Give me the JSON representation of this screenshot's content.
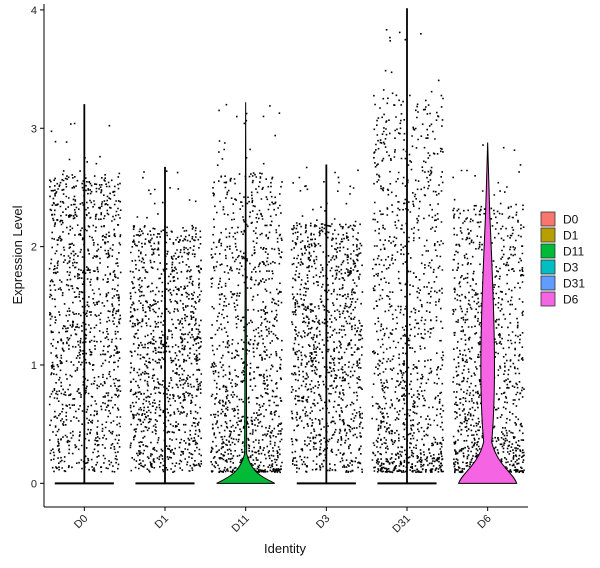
{
  "chart_data": {
    "type": "violin",
    "xlabel": "Identity",
    "ylabel": "Expression Level",
    "ylim": [
      -0.2,
      4.05
    ],
    "yticks": [
      0,
      1,
      2,
      3,
      4
    ],
    "grid": false,
    "legend_position": "right",
    "categories": [
      "D0",
      "D1",
      "D11",
      "D3",
      "D31",
      "D6"
    ],
    "series": [
      {
        "name": "D0",
        "color": "#F8766D",
        "max": 3.2,
        "violin_peak_width": 0.0,
        "zero_mass_visible": false
      },
      {
        "name": "D1",
        "color": "#B79F00",
        "max": 2.67,
        "violin_peak_width": 0.0,
        "zero_mass_visible": false
      },
      {
        "name": "D11",
        "color": "#00BA38",
        "max": 3.22,
        "violin_peak_width": 0.46,
        "zero_mass_visible": true
      },
      {
        "name": "D3",
        "color": "#00BFC4",
        "max": 2.69,
        "violin_peak_width": 0.0,
        "zero_mass_visible": false
      },
      {
        "name": "D31",
        "color": "#619CFF",
        "max": 4.01,
        "violin_peak_width": 0.0,
        "zero_mass_visible": false
      },
      {
        "name": "D6",
        "color": "#F564E3",
        "max": 2.88,
        "violin_peak_width": 0.94,
        "zero_mass_visible": true
      }
    ],
    "legend": [
      "D0",
      "D1",
      "D11",
      "D3",
      "D31",
      "D6"
    ]
  }
}
